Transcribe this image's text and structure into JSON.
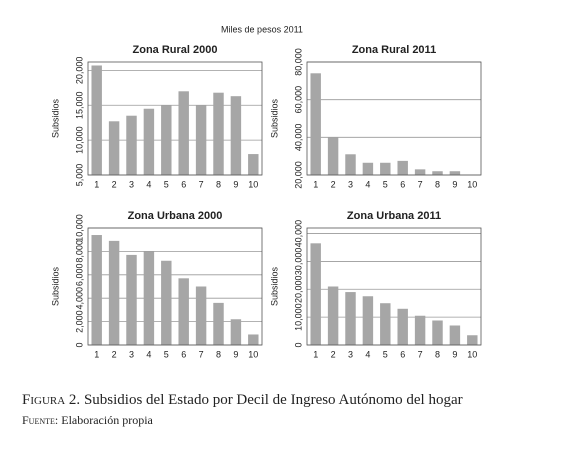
{
  "suptitle": "Miles de pesos 2011",
  "caption_label": "Figura 2.",
  "caption": "Subsidios del Estado por Decil de Ingreso Autónomo del hogar",
  "source_label": "Fuente:",
  "source": "Elaboración propia",
  "chart_data": [
    {
      "type": "bar",
      "title": "Zona Rural 2000",
      "ylabel": "Subsidios",
      "color": "#a6a6a6",
      "grid": true,
      "categories": [
        "1",
        "2",
        "3",
        "4",
        "5",
        "6",
        "7",
        "8",
        "9",
        "10"
      ],
      "values": [
        20700,
        12700,
        13500,
        14500,
        15000,
        17000,
        15000,
        16800,
        16300,
        8000
      ],
      "ylim": [
        5000,
        21200
      ],
      "yticks": [
        {
          "value": 5000,
          "label": "5,000"
        },
        {
          "value": 10000,
          "label": "10,000"
        },
        {
          "value": 15000,
          "label": "15,000"
        },
        {
          "value": 20000,
          "label": "20,000"
        }
      ]
    },
    {
      "type": "bar",
      "title": "Zona Rural 2011",
      "ylabel": "Subsidios",
      "color": "#a6a6a6",
      "grid": true,
      "categories": [
        "1",
        "2",
        "3",
        "4",
        "5",
        "6",
        "7",
        "8",
        "9",
        "10"
      ],
      "values": [
        74000,
        40000,
        31000,
        26500,
        26500,
        27500,
        23000,
        22000,
        22000,
        null
      ],
      "ylim": [
        20000,
        80000
      ],
      "yticks": [
        {
          "value": 20000,
          "label": "20,000"
        },
        {
          "value": 40000,
          "label": "40,000"
        },
        {
          "value": 60000,
          "label": "60,000"
        },
        {
          "value": 80000,
          "label": "80,000"
        }
      ]
    },
    {
      "type": "bar",
      "title": "Zona Urbana 2000",
      "ylabel": "Subsidios",
      "color": "#a6a6a6",
      "grid": true,
      "categories": [
        "1",
        "2",
        "3",
        "4",
        "5",
        "6",
        "7",
        "8",
        "9",
        "10"
      ],
      "values": [
        9400,
        8900,
        7700,
        8000,
        7200,
        5700,
        5000,
        3600,
        2200,
        900
      ],
      "ylim": [
        0,
        10000
      ],
      "yticks": [
        0,
        {
          "value": 2000,
          "label": "2,000"
        },
        {
          "value": 4000,
          "label": "4,000"
        },
        {
          "value": 6000,
          "label": "6,000"
        },
        {
          "value": 8000,
          "label": "8,000"
        },
        {
          "value": 10000,
          "label": "10,000"
        }
      ]
    },
    {
      "type": "bar",
      "title": "Zona Urbana 2011",
      "ylabel": "Subsidios",
      "color": "#a6a6a6",
      "grid": true,
      "categories": [
        "1",
        "2",
        "3",
        "4",
        "5",
        "6",
        "7",
        "8",
        "9",
        "10"
      ],
      "values": [
        36500,
        21000,
        19000,
        17500,
        15000,
        13000,
        10500,
        8800,
        7000,
        3500
      ],
      "ylim": [
        0,
        42000
      ],
      "yticks": [
        0,
        {
          "value": 10000,
          "label": "10,000"
        },
        {
          "value": 20000,
          "label": "20,000"
        },
        {
          "value": 30000,
          "label": "30,000"
        },
        {
          "value": 40000,
          "label": "40,000"
        }
      ]
    }
  ]
}
